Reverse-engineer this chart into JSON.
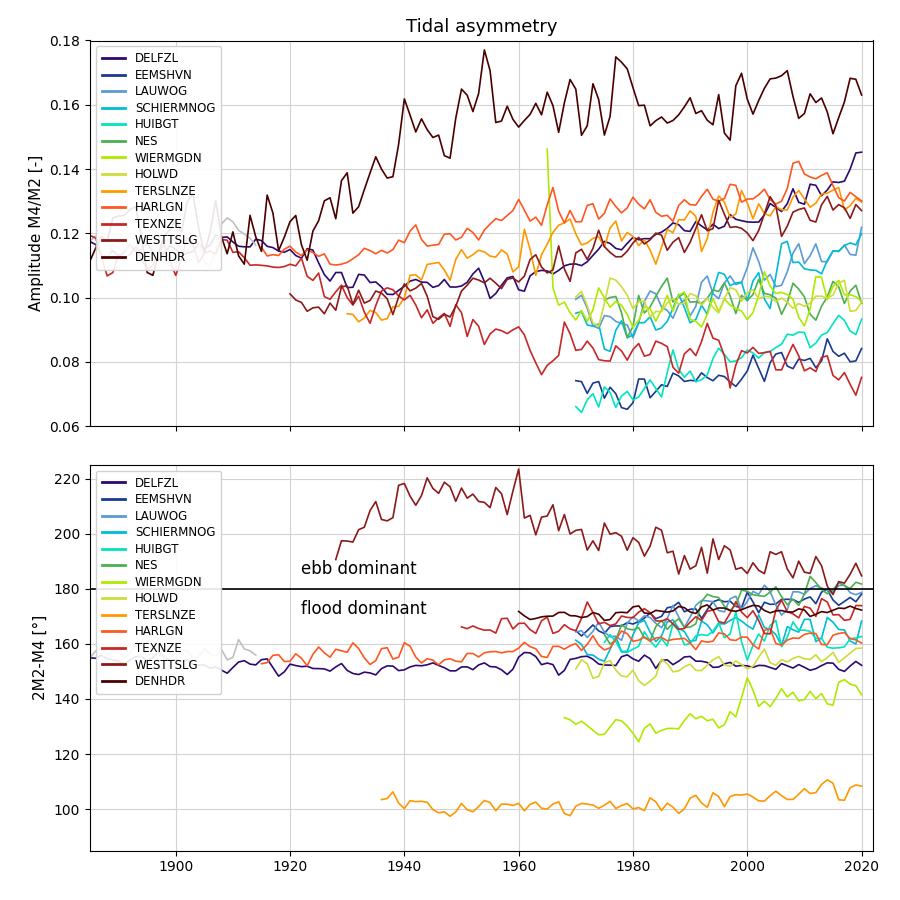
{
  "title": "Tidal asymmetry",
  "ylabel1": "Amplitude M4/M2 [-]",
  "ylabel2": "2M2-M4 [°]",
  "xlim": [
    1885,
    2022
  ],
  "ylim1": [
    0.06,
    0.18
  ],
  "ylim2": [
    85,
    225
  ],
  "yticks1": [
    0.06,
    0.08,
    0.1,
    0.12,
    0.14,
    0.16,
    0.18
  ],
  "yticks2": [
    100,
    120,
    140,
    160,
    180,
    200,
    220
  ],
  "hline_y": 180,
  "ebb_text": "ebb dominant",
  "flood_text": "flood dominant",
  "ebb_x": 1922,
  "ebb_y": 184,
  "flood_x": 1922,
  "flood_y": 176,
  "stations": [
    "DELFZL",
    "EEMSHVN",
    "LAUWOG",
    "SCHIERMNOG",
    "HUIBGT",
    "NES",
    "WIERMGDN",
    "HOLWD",
    "TERSLNZE",
    "HARLGN",
    "TEXNZE",
    "WESTTSLG",
    "DENHDR"
  ],
  "colors": [
    "#2d0a6e",
    "#1a3a8f",
    "#5b9bd5",
    "#00bcd4",
    "#00e5c0",
    "#4caf50",
    "#aeea00",
    "#cddc39",
    "#ff9800",
    "#ff5722",
    "#c62828",
    "#8b1a1a",
    "#4a0000"
  ],
  "gray_color": "#c0c0c0",
  "seed": 42
}
